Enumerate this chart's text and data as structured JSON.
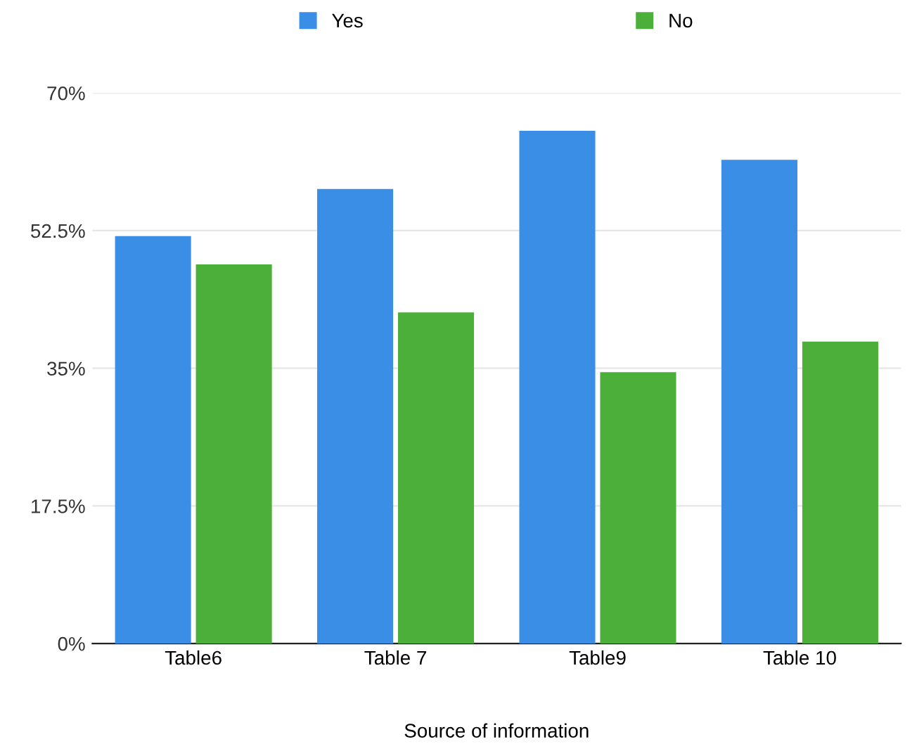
{
  "chart_data": {
    "type": "bar",
    "xlabel": "Source of information",
    "categories": [
      "Table6",
      "Table 7",
      "Table9",
      "Table 10"
    ],
    "series": [
      {
        "name": "Yes",
        "color": "#3a8ee6",
        "values": [
          51.8,
          57.8,
          65.2,
          61.5
        ]
      },
      {
        "name": "No",
        "color": "#4caf3a",
        "values": [
          48.2,
          42.1,
          34.5,
          38.4
        ]
      }
    ],
    "ylim": [
      0,
      70
    ],
    "yticks": [
      {
        "value": 0,
        "label": "0%"
      },
      {
        "value": 17.5,
        "label": "17.5%"
      },
      {
        "value": 35,
        "label": "35%"
      },
      {
        "value": 52.5,
        "label": "52.5%"
      },
      {
        "value": 70,
        "label": "70%"
      }
    ],
    "grid": "y",
    "legend": "top"
  }
}
